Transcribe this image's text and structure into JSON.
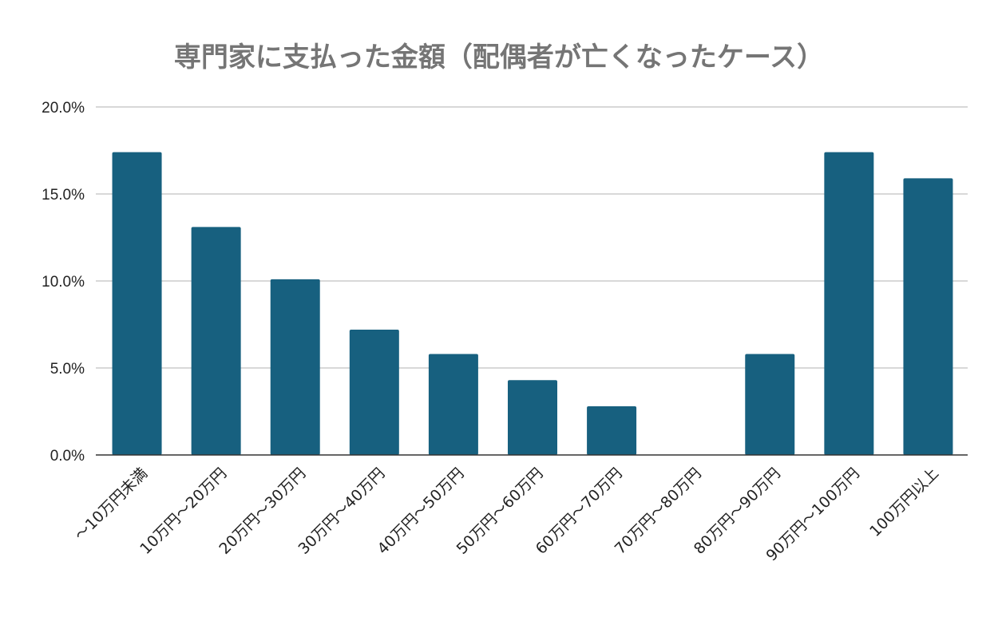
{
  "chart_data": {
    "type": "bar",
    "title": "専門家に支払った金額（配偶者が亡くなったケース）",
    "xlabel": "",
    "ylabel": "",
    "categories": [
      "～10万円未満",
      "10万円～20万円",
      "20万円～30万円",
      "30万円～40万円",
      "40万円～50万円",
      "50万円～60万円",
      "60万円～70万円",
      "70万円～80万円",
      "80万円～90万円",
      "90万円～100万円",
      "100万円以上"
    ],
    "values": [
      17.4,
      13.1,
      10.1,
      7.2,
      5.8,
      4.3,
      2.8,
      0.0,
      5.8,
      17.4,
      15.9
    ],
    "ylim": [
      0,
      20
    ],
    "yticks": [
      0,
      5,
      10,
      15,
      20
    ],
    "ytick_labels": [
      "0.0%",
      "5.0%",
      "10.0%",
      "15.0%",
      "20.0%"
    ],
    "grid": true,
    "bar_color": "#17607f",
    "grid_color": "#cccccc",
    "axis_color": "#333333"
  }
}
